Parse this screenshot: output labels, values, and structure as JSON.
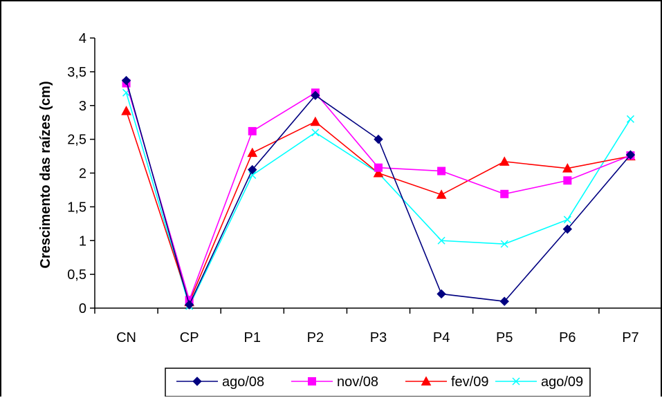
{
  "chart_data": {
    "type": "line",
    "title": "",
    "xlabel": "",
    "ylabel": "Crescimento das raízes (cm)",
    "categories": [
      "CN",
      "CP",
      "P1",
      "P2",
      "P3",
      "P4",
      "P5",
      "P6",
      "P7"
    ],
    "ylim": [
      0,
      4
    ],
    "yticks": [
      0,
      0.5,
      1,
      1.5,
      2,
      2.5,
      3,
      3.5,
      4
    ],
    "ytick_labels": [
      "0",
      "0,5",
      "1",
      "1,5",
      "2",
      "2,5",
      "3",
      "3,5",
      "4"
    ],
    "grid": false,
    "legend_position": "bottom",
    "series": [
      {
        "name": "ago/08",
        "color": "#000080",
        "marker": "diamond",
        "values": [
          3.37,
          0.05,
          2.05,
          3.15,
          2.5,
          0.21,
          0.1,
          1.17,
          2.27
        ]
      },
      {
        "name": "nov/08",
        "color": "#FF00FF",
        "marker": "square",
        "values": [
          3.33,
          0.12,
          2.62,
          3.19,
          2.08,
          2.03,
          1.69,
          1.89,
          2.26
        ]
      },
      {
        "name": "fev/09",
        "color": "#FF0000",
        "marker": "triangle",
        "values": [
          2.92,
          0.09,
          2.3,
          2.76,
          2.0,
          1.68,
          2.17,
          2.07,
          2.25
        ]
      },
      {
        "name": "ago/09",
        "color": "#00FFFF",
        "marker": "x",
        "values": [
          3.19,
          0.03,
          1.97,
          2.6,
          2.0,
          1.0,
          0.95,
          1.31,
          2.8
        ]
      }
    ]
  }
}
